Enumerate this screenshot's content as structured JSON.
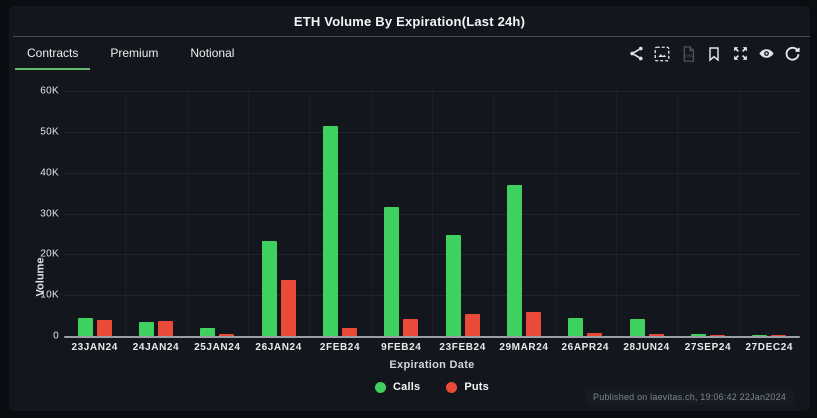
{
  "header": {
    "title": "ETH Volume By Expiration(Last 24h)"
  },
  "tabs": [
    {
      "label": "Contracts",
      "active": true
    },
    {
      "label": "Premium",
      "active": false
    },
    {
      "label": "Notional",
      "active": false
    }
  ],
  "toolbar_icons": [
    {
      "name": "share-icon"
    },
    {
      "name": "save-image-icon"
    },
    {
      "name": "csv-export-icon",
      "disabled": true
    },
    {
      "name": "bookmark-icon"
    },
    {
      "name": "fullscreen-icon"
    },
    {
      "name": "eye-icon"
    },
    {
      "name": "refresh-icon"
    }
  ],
  "chart_data": {
    "type": "bar",
    "title": "ETH Volume By Expiration(Last 24h)",
    "xlabel": "Expiration Date",
    "ylabel": "Volume",
    "ylim": [
      0,
      60000
    ],
    "y_ticks": [
      "0",
      "10K",
      "20K",
      "30K",
      "40K",
      "50K",
      "60K"
    ],
    "grid": true,
    "legend_position": "bottom",
    "categories": [
      "23JAN24",
      "24JAN24",
      "25JAN24",
      "26JAN24",
      "2FEB24",
      "9FEB24",
      "23FEB24",
      "29MAR24",
      "26APR24",
      "28JUN24",
      "27SEP24",
      "27DEC24"
    ],
    "series": [
      {
        "name": "Calls",
        "color": "#3ed160",
        "values": [
          4500,
          3400,
          2000,
          23200,
          51400,
          31500,
          24800,
          37100,
          4400,
          4200,
          600,
          200
        ]
      },
      {
        "name": "Puts",
        "color": "#ea4b38",
        "values": [
          3900,
          3700,
          400,
          13700,
          2000,
          4100,
          5500,
          5800,
          800,
          500,
          200,
          300
        ]
      }
    ]
  },
  "footer": {
    "published": "Published on laevitas.ch, 19:06:42 22Jan2024"
  },
  "colors": {
    "background": "#0a0d11",
    "card": "#13171d",
    "calls": "#3ed160",
    "puts": "#ea4b38",
    "tab_active_underline": "#67bb6a"
  }
}
